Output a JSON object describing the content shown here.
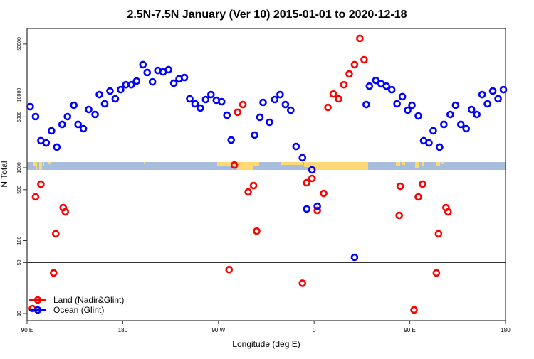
{
  "chart_data": {
    "type": "scatter",
    "title": "2.5N-7.5N January (Ver 10)   2015-01-01 to 2020-12-18",
    "xlabel": "Longitude (deg E)",
    "ylabel": "N Total",
    "x_units": "degrees east, unwrapped (90 = 90E, 180 = 180, 270 = 90W, 360 = 0, 450 = 90E, 540 = 180)",
    "xlim": [
      90,
      540
    ],
    "ylim": [
      8,
      90000
    ],
    "yscale": "log",
    "x_ticks": [
      {
        "value": 90,
        "label": "90 E"
      },
      {
        "value": 180,
        "label": "180"
      },
      {
        "value": 270,
        "label": "90 W"
      },
      {
        "value": 360,
        "label": "0"
      },
      {
        "value": 450,
        "label": "90 E"
      },
      {
        "value": 540,
        "label": "180"
      }
    ],
    "y_ticks": [
      {
        "value": 10,
        "label": "10"
      },
      {
        "value": 50,
        "label": "50"
      },
      {
        "value": 100,
        "label": "100"
      },
      {
        "value": 500,
        "label": "500"
      },
      {
        "value": 1000,
        "label": "1000"
      },
      {
        "value": 5000,
        "label": "5000"
      },
      {
        "value": 10000,
        "label": "10000"
      },
      {
        "value": 50000,
        "label": "50000"
      }
    ],
    "reference_line": 50,
    "legend_position": "bottom-left",
    "series": [
      {
        "name": "Land (Nadir&Glint)",
        "color": "#ff0000",
        "points": [
          [
            95,
            11.7
          ],
          [
            98,
            398
          ],
          [
            103,
            597
          ],
          [
            115,
            36
          ],
          [
            117,
            124
          ],
          [
            124,
            284
          ],
          [
            126,
            248
          ],
          [
            280,
            40
          ],
          [
            285,
            1090
          ],
          [
            288,
            5770
          ],
          [
            293,
            7380
          ],
          [
            298,
            466
          ],
          [
            303,
            570
          ],
          [
            306,
            135
          ],
          [
            349,
            26
          ],
          [
            353,
            624
          ],
          [
            358,
            714
          ],
          [
            363,
            260
          ],
          [
            369,
            445
          ],
          [
            373,
            6750
          ],
          [
            378,
            10300
          ],
          [
            383,
            8840
          ],
          [
            388,
            13800
          ],
          [
            393,
            19400
          ],
          [
            398,
            26000
          ],
          [
            403,
            59700
          ],
          [
            407,
            30400
          ],
          [
            440,
            222
          ],
          [
            441,
            557
          ],
          [
            454,
            11.2
          ],
          [
            458,
            398
          ],
          [
            462,
            597
          ],
          [
            475,
            36
          ],
          [
            477,
            124
          ],
          [
            484,
            284
          ],
          [
            486,
            248
          ]
        ]
      },
      {
        "name": "Ocean (Glint)",
        "color": "#0000ff",
        "points": [
          [
            93,
            6900
          ],
          [
            98,
            5040
          ],
          [
            103,
            2350
          ],
          [
            108,
            2190
          ],
          [
            113,
            3220
          ],
          [
            118,
            1920
          ],
          [
            123,
            3940
          ],
          [
            128,
            5040
          ],
          [
            134,
            7220
          ],
          [
            138,
            3940
          ],
          [
            143,
            3440
          ],
          [
            148,
            6310
          ],
          [
            154,
            5390
          ],
          [
            158,
            10100
          ],
          [
            163,
            7550
          ],
          [
            168,
            11300
          ],
          [
            173,
            8840
          ],
          [
            178,
            11800
          ],
          [
            183,
            13800
          ],
          [
            188,
            13800
          ],
          [
            193,
            15500
          ],
          [
            199,
            26000
          ],
          [
            203,
            20300
          ],
          [
            208,
            15100
          ],
          [
            213,
            21700
          ],
          [
            218,
            20700
          ],
          [
            223,
            22200
          ],
          [
            228,
            14500
          ],
          [
            233,
            16600
          ],
          [
            238,
            17300
          ],
          [
            243,
            8840
          ],
          [
            248,
            7550
          ],
          [
            253,
            6600
          ],
          [
            258,
            8640
          ],
          [
            263,
            10100
          ],
          [
            268,
            8450
          ],
          [
            273,
            8080
          ],
          [
            278,
            5270
          ],
          [
            282,
            2400
          ],
          [
            304,
            2810
          ],
          [
            309,
            4930
          ],
          [
            312,
            7900
          ],
          [
            318,
            4210
          ],
          [
            323,
            8640
          ],
          [
            328,
            10100
          ],
          [
            333,
            7380
          ],
          [
            338,
            6170
          ],
          [
            343,
            1960
          ],
          [
            349,
            1370
          ],
          [
            353,
            272
          ],
          [
            358,
            935
          ],
          [
            363,
            297
          ],
          [
            398,
            59
          ],
          [
            409,
            7380
          ],
          [
            412,
            13200
          ],
          [
            418,
            15800
          ],
          [
            423,
            14200
          ],
          [
            428,
            13200
          ],
          [
            433,
            11800
          ],
          [
            438,
            7550
          ],
          [
            443,
            9460
          ],
          [
            448,
            6170
          ],
          [
            452,
            7220
          ],
          [
            458,
            5150
          ],
          [
            463,
            2350
          ],
          [
            468,
            2190
          ],
          [
            472,
            3220
          ],
          [
            478,
            1920
          ],
          [
            482,
            3940
          ],
          [
            488,
            5390
          ],
          [
            493,
            7220
          ],
          [
            498,
            3940
          ],
          [
            503,
            3440
          ],
          [
            508,
            6310
          ],
          [
            513,
            5390
          ],
          [
            518,
            10100
          ],
          [
            523,
            7550
          ],
          [
            528,
            11300
          ],
          [
            533,
            8840
          ],
          [
            538,
            11800
          ]
        ]
      }
    ],
    "map_strip": {
      "ocean_color": "#a6bddb",
      "land_color": "#ffd876"
    }
  }
}
